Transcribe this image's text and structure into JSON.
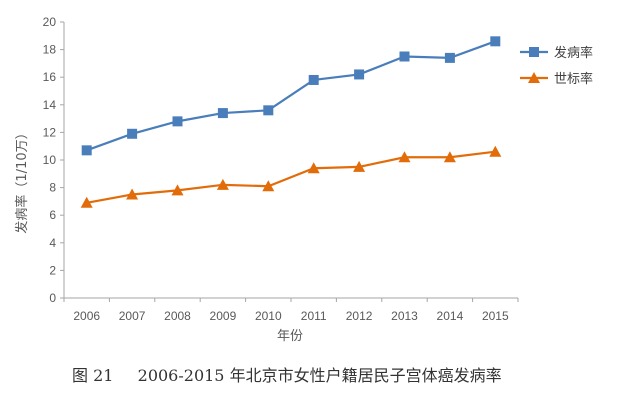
{
  "chart_data": {
    "type": "line",
    "categories": [
      "2006",
      "2007",
      "2008",
      "2009",
      "2010",
      "2011",
      "2012",
      "2013",
      "2014",
      "2015"
    ],
    "series": [
      {
        "name": "发病率",
        "values": [
          10.7,
          11.9,
          12.8,
          13.4,
          13.6,
          15.8,
          16.2,
          17.5,
          17.4,
          18.6
        ],
        "color": "#4a7ebb",
        "marker": "square"
      },
      {
        "name": "世标率",
        "values": [
          6.9,
          7.5,
          7.8,
          8.2,
          8.1,
          9.4,
          9.5,
          10.2,
          10.2,
          10.6
        ],
        "color": "#e36c0a",
        "marker": "triangle"
      }
    ],
    "xlabel": "年份",
    "ylabel": "发病率（1/10万）",
    "ylim": [
      0,
      20
    ],
    "yticks": [
      0,
      2,
      4,
      6,
      8,
      10,
      12,
      14,
      16,
      18,
      20
    ],
    "grid": false,
    "legend": "top-right"
  },
  "caption": {
    "number": "图 21",
    "text": "2006-2015 年北京市女性户籍居民子宫体癌发病率"
  }
}
